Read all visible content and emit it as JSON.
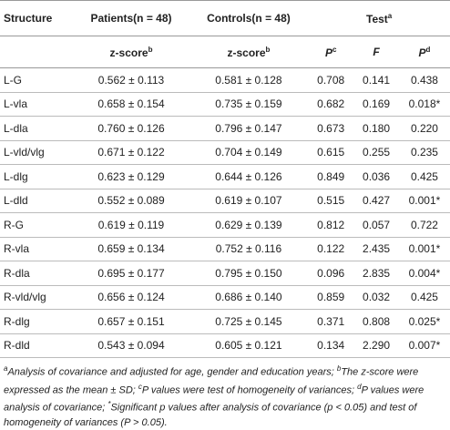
{
  "table": {
    "header": [
      [
        {
          "text": "Structure"
        },
        {
          "text": "Patients(n = 48)"
        },
        {
          "text": "Controls(n = 48)"
        },
        {
          "text": "Test",
          "sup": "a"
        }
      ],
      [
        {
          "text": "z-score",
          "sup": "b"
        },
        {
          "text": "z-score",
          "sup": "b"
        },
        {
          "text": "P",
          "sup": "c"
        },
        {
          "text": "F"
        },
        {
          "text": "P",
          "sup": "d"
        }
      ]
    ],
    "rows": [
      [
        "L-G",
        "0.562 ± 0.113",
        "0.581 ± 0.128",
        "0.708",
        "0.141",
        "0.438"
      ],
      [
        "L-vla",
        "0.658 ± 0.154",
        "0.735 ± 0.159",
        "0.682",
        "0.169",
        "0.018*"
      ],
      [
        "L-dla",
        "0.760 ± 0.126",
        "0.796 ± 0.147",
        "0.673",
        "0.180",
        "0.220"
      ],
      [
        "L-vld/vlg",
        "0.671 ± 0.122",
        "0.704 ± 0.149",
        "0.615",
        "0.255",
        "0.235"
      ],
      [
        "L-dlg",
        "0.623 ± 0.129",
        "0.644 ± 0.126",
        "0.849",
        "0.036",
        "0.425"
      ],
      [
        "L-dld",
        "0.552 ± 0.089",
        "0.619 ± 0.107",
        "0.515",
        "0.427",
        "0.001*"
      ],
      [
        "R-G",
        "0.619 ± 0.119",
        "0.629 ± 0.139",
        "0.812",
        "0.057",
        "0.722"
      ],
      [
        "R-vla",
        "0.659 ± 0.134",
        "0.752 ± 0.116",
        "0.122",
        "2.435",
        "0.001*"
      ],
      [
        "R-dla",
        "0.695 ± 0.177",
        "0.795 ± 0.150",
        "0.096",
        "2.835",
        "0.004*"
      ],
      [
        "R-vld/vlg",
        "0.656 ± 0.124",
        "0.686 ± 0.140",
        "0.859",
        "0.032",
        "0.425"
      ],
      [
        "R-dlg",
        "0.657 ± 0.151",
        "0.725 ± 0.145",
        "0.371",
        "0.808",
        "0.025*"
      ],
      [
        "R-dld",
        "0.543 ± 0.094",
        "0.605 ± 0.121",
        "0.134",
        "2.290",
        "0.007*"
      ]
    ]
  },
  "footnotes": [
    {
      "sup": "a",
      "text": "Analysis of covariance and adjusted for age, gender and education years;"
    },
    {
      "sup": "b",
      "text": "The z-score were expressed as the mean ± SD;"
    },
    {
      "sup": "c",
      "text": "P values were test of homogeneity of variances;"
    },
    {
      "sup": "d",
      "text": "P values were analysis of covariance;"
    },
    {
      "sup": "*",
      "text": "Significant p values after analysis of covariance (p < 0.05) and test of homogeneity of variances (P > 0.05)."
    }
  ]
}
